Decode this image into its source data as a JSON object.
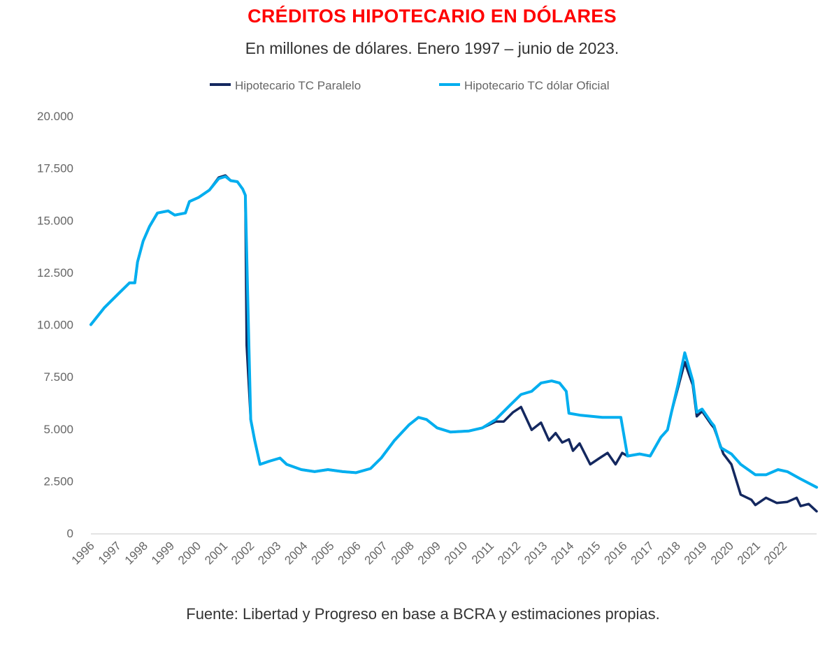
{
  "chart_data": {
    "type": "line",
    "title": "CRÉDITOS HIPOTECARIO EN DÓLARES",
    "subtitle": "En millones de dólares. Enero 1997 – junio de 2023.",
    "source": "Fuente: Libertad y Progreso en base a BCRA y estimaciones propias.",
    "xlabel": "",
    "ylabel": "",
    "xlim": [
      1996,
      2023.25
    ],
    "ylim": [
      0,
      20000
    ],
    "y_ticks": [
      "0",
      "2.500",
      "5.000",
      "7.500",
      "10.000",
      "12.500",
      "15.000",
      "17.500",
      "20.000"
    ],
    "y_tick_values": [
      0,
      2500,
      5000,
      7500,
      10000,
      12500,
      15000,
      17500,
      20000
    ],
    "x_ticks": [
      "1996",
      "1997",
      "1998",
      "1999",
      "2000",
      "2001",
      "2002",
      "2003",
      "2004",
      "2005",
      "2006",
      "2007",
      "2008",
      "2009",
      "2010",
      "2011",
      "2012",
      "2013",
      "2014",
      "2015",
      "2016",
      "2017",
      "2018",
      "2019",
      "2020",
      "2021",
      "2022"
    ],
    "grid": false,
    "legend_position": "top",
    "series": [
      {
        "name": "Hipotecario TC Paralelo",
        "color": "#14285f",
        "x": [
          1996.0,
          1996.5,
          1997.05,
          1997.45,
          1997.65,
          1997.75,
          1997.96,
          1998.2,
          1998.5,
          1998.9,
          1999.15,
          1999.55,
          1999.7,
          2000.05,
          2000.45,
          2000.8,
          2001.05,
          2001.25,
          2001.5,
          2001.7,
          2001.8,
          2001.85,
          2002.0,
          2002.15,
          2002.35,
          2002.7,
          2003.1,
          2003.35,
          2003.9,
          2004.4,
          2004.9,
          2005.45,
          2005.95,
          2006.5,
          2006.9,
          2007.4,
          2007.95,
          2008.3,
          2008.6,
          2009.0,
          2009.5,
          2010.2,
          2010.7,
          2011.2,
          2011.5,
          2011.85,
          2012.15,
          2012.55,
          2012.9,
          2013.2,
          2013.45,
          2013.7,
          2013.95,
          2014.1,
          2014.35,
          2014.75,
          2015.1,
          2015.4,
          2015.7,
          2015.95,
          2016.15,
          2016.6,
          2017.0,
          2017.4,
          2017.65,
          2017.8,
          2018.05,
          2018.3,
          2018.6,
          2018.75,
          2018.95,
          2019.3,
          2019.4,
          2019.75,
          2020.05,
          2020.4,
          2020.8,
          2020.95,
          2021.35,
          2021.75,
          2022.15,
          2022.5,
          2022.65,
          2022.95,
          2023.25
        ],
        "values": [
          10000,
          10800,
          11500,
          12000,
          12000,
          13000,
          14000,
          14700,
          15350,
          15450,
          15250,
          15350,
          15900,
          16100,
          16450,
          17050,
          17150,
          16900,
          16850,
          16500,
          16200,
          9000,
          5450,
          4450,
          3300,
          3450,
          3600,
          3300,
          3050,
          2950,
          3050,
          2950,
          2900,
          3100,
          3600,
          4450,
          5200,
          5550,
          5450,
          5050,
          4850,
          4900,
          5050,
          5350,
          5350,
          5800,
          6050,
          4950,
          5300,
          4450,
          4800,
          4350,
          4500,
          3950,
          4300,
          3300,
          3600,
          3850,
          3300,
          3850,
          3700,
          3800,
          3700,
          4600,
          4950,
          5800,
          7000,
          8200,
          7100,
          5600,
          5850,
          5200,
          5050,
          3800,
          3300,
          1850,
          1600,
          1350,
          1700,
          1450,
          1500,
          1700,
          1300,
          1400,
          1050
        ]
      },
      {
        "name": "Hipotecario TC dólar Oficial",
        "color": "#00aeef",
        "x": [
          1996.0,
          1996.5,
          1997.05,
          1997.45,
          1997.65,
          1997.75,
          1997.96,
          1998.2,
          1998.5,
          1998.9,
          1999.15,
          1999.55,
          1999.7,
          2000.05,
          2000.45,
          2000.8,
          2001.05,
          2001.25,
          2001.5,
          2001.7,
          2001.8,
          2001.9,
          2002.0,
          2002.15,
          2002.35,
          2002.7,
          2003.1,
          2003.35,
          2003.9,
          2004.4,
          2004.9,
          2005.45,
          2005.95,
          2006.5,
          2006.9,
          2007.4,
          2007.95,
          2008.3,
          2008.6,
          2009.0,
          2009.5,
          2010.2,
          2010.7,
          2011.2,
          2011.75,
          2012.15,
          2012.55,
          2012.9,
          2013.3,
          2013.6,
          2013.85,
          2013.95,
          2014.4,
          2015.2,
          2015.9,
          2016.15,
          2016.6,
          2017.0,
          2017.4,
          2017.65,
          2017.8,
          2018.05,
          2018.3,
          2018.6,
          2018.75,
          2018.95,
          2019.3,
          2019.4,
          2019.65,
          2020.05,
          2020.4,
          2020.95,
          2021.35,
          2021.8,
          2022.15,
          2022.65,
          2023.25
        ],
        "values": [
          10000,
          10800,
          11500,
          12000,
          12000,
          13000,
          14000,
          14700,
          15350,
          15450,
          15250,
          15350,
          15900,
          16100,
          16450,
          17000,
          17100,
          16900,
          16850,
          16500,
          16200,
          10800,
          5450,
          4450,
          3300,
          3450,
          3600,
          3300,
          3050,
          2950,
          3050,
          2950,
          2900,
          3100,
          3600,
          4450,
          5200,
          5550,
          5450,
          5050,
          4850,
          4900,
          5050,
          5450,
          6150,
          6650,
          6800,
          7200,
          7300,
          7200,
          6800,
          5750,
          5650,
          5550,
          5550,
          3700,
          3800,
          3700,
          4600,
          4950,
          5800,
          7150,
          8650,
          7300,
          5800,
          5950,
          5300,
          5150,
          4100,
          3800,
          3300,
          2800,
          2800,
          3050,
          2950,
          2600,
          2200
        ]
      }
    ]
  }
}
